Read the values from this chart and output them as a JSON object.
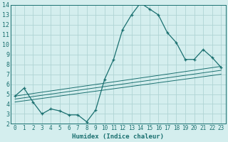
{
  "title": "",
  "xlabel": "Humidex (Indice chaleur)",
  "ylabel": "",
  "xlim": [
    -0.5,
    23.5
  ],
  "ylim": [
    2,
    14
  ],
  "yticks": [
    2,
    3,
    4,
    5,
    6,
    7,
    8,
    9,
    10,
    11,
    12,
    13,
    14
  ],
  "xticks": [
    0,
    1,
    2,
    3,
    4,
    5,
    6,
    7,
    8,
    9,
    10,
    11,
    12,
    13,
    14,
    15,
    16,
    17,
    18,
    19,
    20,
    21,
    22,
    23
  ],
  "bg_color": "#d4eeee",
  "grid_color": "#b0d4d4",
  "line_color": "#1a7070",
  "curve_x": [
    0,
    1,
    2,
    3,
    4,
    5,
    6,
    7,
    8,
    9,
    10,
    11,
    12,
    13,
    14,
    15,
    16,
    17,
    18,
    19,
    20,
    21,
    22,
    23
  ],
  "curve_y": [
    4.8,
    5.6,
    4.2,
    3.0,
    3.5,
    3.3,
    2.9,
    2.9,
    2.2,
    3.4,
    6.5,
    8.5,
    11.5,
    13.0,
    14.2,
    13.6,
    13.0,
    11.2,
    10.2,
    8.5,
    8.5,
    9.5,
    8.7,
    7.7
  ],
  "trend1_x": [
    0,
    23
  ],
  "trend1_y": [
    4.8,
    7.8
  ],
  "trend2_x": [
    0,
    23
  ],
  "trend2_y": [
    4.5,
    7.4
  ],
  "trend3_x": [
    0,
    23
  ],
  "trend3_y": [
    4.2,
    7.0
  ]
}
